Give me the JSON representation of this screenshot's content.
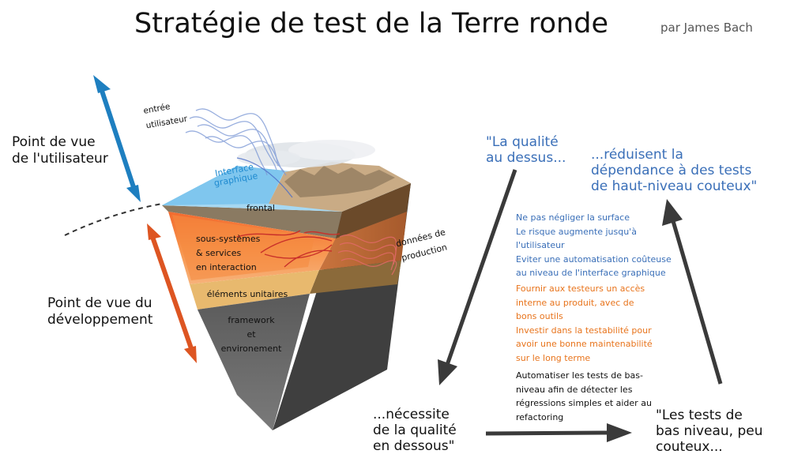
{
  "header": {
    "title": "Stratégie de test de la Terre ronde",
    "author": "par James Bach"
  },
  "perspectives": {
    "user": "Point de vue\nde l'utilisateur",
    "developer": "Point de vue du\ndéveloppement"
  },
  "earth_labels": {
    "user_input": "entrée\nutilisateur",
    "gui": "Interface\ngraphique",
    "frontend": "frontal",
    "subsystems": "sous-systèmes\n& services\nen interaction",
    "units": "éléments unitaires",
    "framework": "framework\net\nenvironement",
    "production_data": "données de\nproduction"
  },
  "cycle": {
    "top_left": "\"La qualité\nau dessus...",
    "top_right": "...réduisent la\ndépendance à des tests\nde haut-niveau couteux\"",
    "bottom_left": "...nécessite\nde la qualité\nen dessous\"",
    "bottom_right": "\"Les tests de\nbas niveau, peu\ncouteux..."
  },
  "notes": {
    "blue": "Ne pas négliger la surface\nLe risque augmente jusqu'à\nl'utilisateur\nEviter une automatisation coûteuse\nau niveau de l'interface graphique",
    "orange": "Fournir aux testeurs un accès\ninterne au produit, avec de\nbons outils\nInvestir dans la testabilité pour\navoir une bonne maintenabilité\nsur le long terme",
    "black": "Automatiser les tests de bas-\nniveau afin de détecter les\nrégressions simples et aider au\nrefactoring"
  },
  "colors": {
    "user_arrow": "#1e7fc0",
    "dev_arrow": "#dd5522",
    "note_blue": "#3a6fb8",
    "note_orange": "#e8741c",
    "cycle_arrow": "#3a3a3a"
  }
}
